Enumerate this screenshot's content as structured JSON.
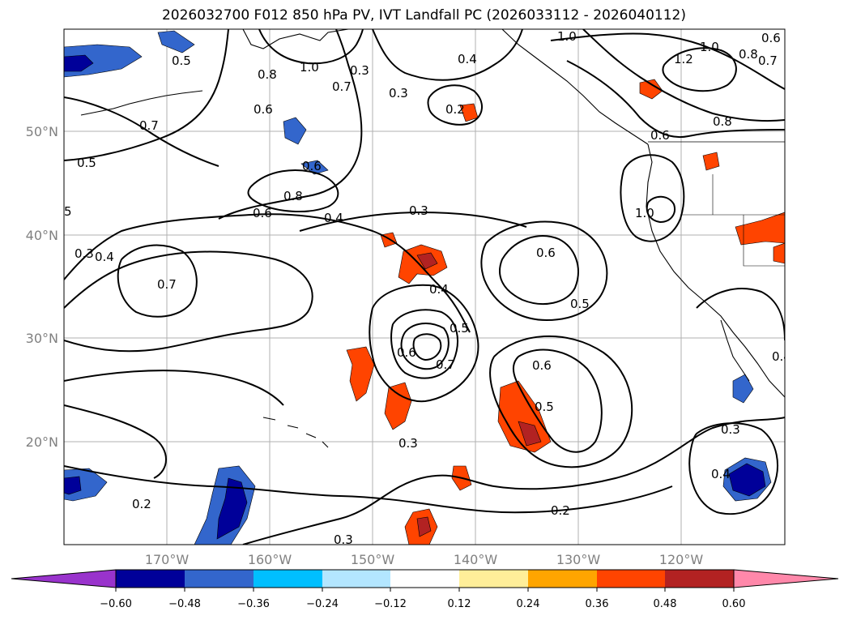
{
  "title": "2026032700 F012 850 hPa PV, IVT Landfall PC (2026033112 - 2026040112)",
  "lat_labels": [
    "50°N",
    "40°N",
    "30°N",
    "20°N"
  ],
  "lon_labels": [
    "170°W",
    "160°W",
    "150°W",
    "140°W",
    "130°W",
    "120°W"
  ],
  "colorbar": {
    "colors": [
      "#9933cc",
      "#000099",
      "#3366cc",
      "#00bfff",
      "#b3e6ff",
      "#ffffff",
      "#ffee99",
      "#ffa500",
      "#ff4400",
      "#b22222",
      "#ff88aa"
    ],
    "tick_labels": [
      "−0.60",
      "−0.48",
      "−0.36",
      "−0.24",
      "−0.12",
      "0.12",
      "0.24",
      "0.36",
      "0.48",
      "0.60"
    ]
  },
  "contour_labels": {
    "l01": "0.5",
    "l02": "1.0",
    "l03": "0.8",
    "l04": "0.3",
    "l05": "0.3",
    "l06": "0.4",
    "l07": "0.2",
    "l08": "1.0",
    "l09": "1.0",
    "l10": "1.2",
    "l11": "0.8",
    "l12": "0.7",
    "l13": "0.8",
    "l14": "0.6",
    "l15": "0.7",
    "l16": "0.6",
    "l17": "0.5",
    "l18": "0.7",
    "l19": "0.6",
    "l20": "0.8",
    "l21": "0.6",
    "l22": "0.4",
    "l23": "0.3",
    "l24": "1.0",
    "l25": "5",
    "l26": "0.3",
    "l27": "0.4",
    "l28": "0.7",
    "l29": "0.6",
    "l30": "0.5",
    "l31": "0.4",
    "l32": "0.5",
    "l33": "0.6",
    "l34": "0.7",
    "l35": "0.6",
    "l36": "0.5",
    "l37": "0.3",
    "l38": "0.3",
    "l39": "0.2",
    "l40": "0.2",
    "l41": "0.3",
    "l42": "0.4",
    "l43": "0.4",
    "l44": "0.6"
  }
}
